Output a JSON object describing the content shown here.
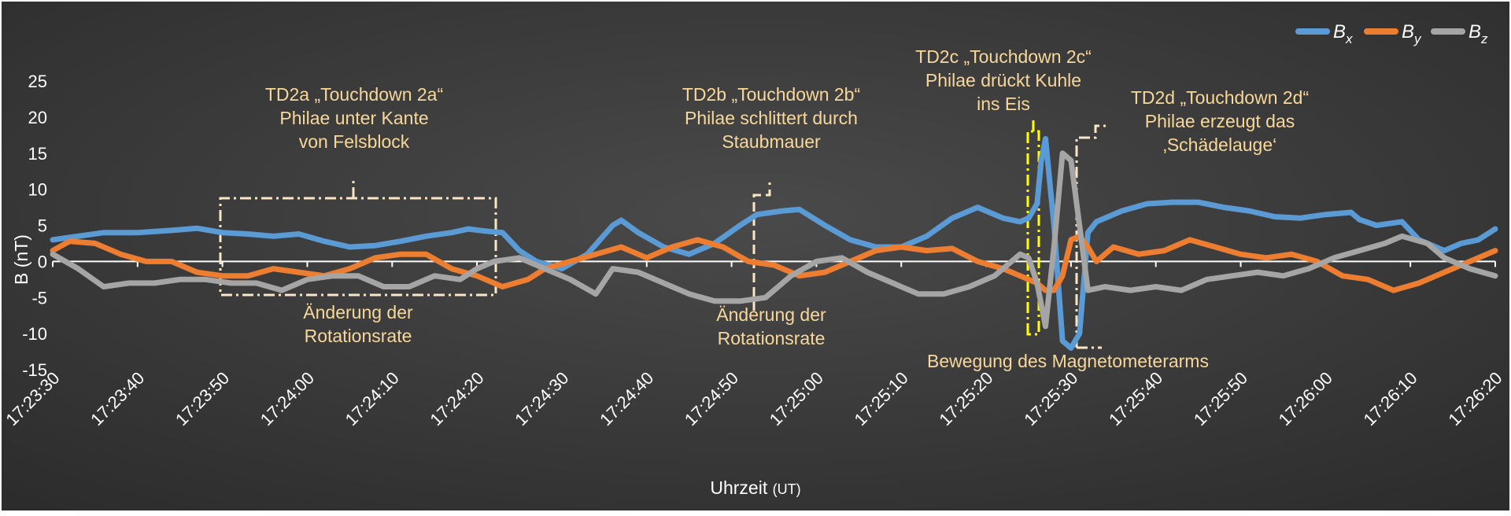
{
  "chart_data": {
    "type": "line",
    "title": "",
    "xlabel": "Uhrzeit",
    "xlabel_unit": "(UT)",
    "ylabel": "B (nT)",
    "ylim": [
      -15,
      25
    ],
    "xlim_seconds": [
      "17:23:30",
      "17:26:20"
    ],
    "y_ticks": [
      "25",
      "20",
      "15",
      "10",
      "5",
      "0",
      "-5",
      "-10",
      "-15"
    ],
    "x_ticks": [
      "17:23:30",
      "17:23:40",
      "17:23:50",
      "17:24:00",
      "17:24:10",
      "17:24:20",
      "17:24:30",
      "17:24:40",
      "17:24:50",
      "17:25:00",
      "17:25:10",
      "17:25:20",
      "17:25:30",
      "17:25:40",
      "17:25:50",
      "17:26:00",
      "17:26:10",
      "17:26:20"
    ],
    "grid": false,
    "legend_position": "top-right",
    "background": "#404040",
    "series": [
      {
        "name": "Bx",
        "base": "B",
        "sub": "x",
        "color": "#5b9bd5",
        "points": [
          [
            "17:23:30",
            3
          ],
          [
            "17:23:33",
            3.5
          ],
          [
            "17:23:36",
            4
          ],
          [
            "17:23:40",
            4
          ],
          [
            "17:23:44",
            4.3
          ],
          [
            "17:23:47",
            4.6
          ],
          [
            "17:23:50",
            4
          ],
          [
            "17:23:53",
            3.8
          ],
          [
            "17:23:56",
            3.5
          ],
          [
            "17:23:59",
            3.8
          ],
          [
            "17:24:02",
            2.8
          ],
          [
            "17:24:05",
            2
          ],
          [
            "17:24:08",
            2.2
          ],
          [
            "17:24:11",
            2.8
          ],
          [
            "17:24:14",
            3.5
          ],
          [
            "17:24:17",
            4
          ],
          [
            "17:24:19",
            4.5
          ],
          [
            "17:24:21",
            4.2
          ],
          [
            "17:24:23",
            4
          ],
          [
            "17:24:25",
            1.5
          ],
          [
            "17:24:27",
            0
          ],
          [
            "17:24:30",
            -1
          ],
          [
            "17:24:33",
            1
          ],
          [
            "17:24:36",
            5
          ],
          [
            "17:24:37",
            5.7
          ],
          [
            "17:24:39",
            4
          ],
          [
            "17:24:42",
            2
          ],
          [
            "17:24:45",
            1
          ],
          [
            "17:24:48",
            2.5
          ],
          [
            "17:24:51",
            5
          ],
          [
            "17:24:53",
            6.5
          ],
          [
            "17:24:56",
            7
          ],
          [
            "17:24:58",
            7.2
          ],
          [
            "17:25:01",
            5
          ],
          [
            "17:25:04",
            3
          ],
          [
            "17:25:07",
            2
          ],
          [
            "17:25:10",
            2
          ],
          [
            "17:25:13",
            3.5
          ],
          [
            "17:25:16",
            6
          ],
          [
            "17:25:19",
            7.5
          ],
          [
            "17:25:22",
            6
          ],
          [
            "17:25:24",
            5.5
          ],
          [
            "17:25:25",
            6
          ],
          [
            "17:25:26",
            8
          ],
          [
            "17:25:26.5",
            14
          ],
          [
            "17:25:27",
            17
          ],
          [
            "17:25:28",
            5
          ],
          [
            "17:25:29",
            -11
          ],
          [
            "17:25:30",
            -12
          ],
          [
            "17:25:31",
            -10
          ],
          [
            "17:25:32",
            4
          ],
          [
            "17:25:33",
            5.5
          ],
          [
            "17:25:36",
            7
          ],
          [
            "17:25:39",
            8
          ],
          [
            "17:25:42",
            8.2
          ],
          [
            "17:25:45",
            8.2
          ],
          [
            "17:25:48",
            7.5
          ],
          [
            "17:25:51",
            7
          ],
          [
            "17:25:54",
            6.2
          ],
          [
            "17:25:57",
            6
          ],
          [
            "17:26:00",
            6.5
          ],
          [
            "17:26:03",
            6.8
          ],
          [
            "17:26:04",
            5.8
          ],
          [
            "17:26:06",
            5
          ],
          [
            "17:26:09",
            5.5
          ],
          [
            "17:26:11",
            3
          ],
          [
            "17:26:14",
            1.5
          ],
          [
            "17:26:16",
            2.5
          ],
          [
            "17:26:18",
            3
          ],
          [
            "17:26:20",
            4.5
          ]
        ]
      },
      {
        "name": "By",
        "base": "B",
        "sub": "y",
        "color": "#ed7d31",
        "points": [
          [
            "17:23:30",
            1.5
          ],
          [
            "17:23:32",
            2.8
          ],
          [
            "17:23:35",
            2.5
          ],
          [
            "17:23:38",
            1
          ],
          [
            "17:23:41",
            0
          ],
          [
            "17:23:44",
            0
          ],
          [
            "17:23:47",
            -1.5
          ],
          [
            "17:23:50",
            -2
          ],
          [
            "17:23:53",
            -2
          ],
          [
            "17:23:56",
            -1
          ],
          [
            "17:23:59",
            -1.5
          ],
          [
            "17:24:02",
            -2
          ],
          [
            "17:24:05",
            -1
          ],
          [
            "17:24:08",
            0.5
          ],
          [
            "17:24:11",
            1
          ],
          [
            "17:24:14",
            1
          ],
          [
            "17:24:17",
            -1
          ],
          [
            "17:24:20",
            -2
          ],
          [
            "17:24:23",
            -3.5
          ],
          [
            "17:24:26",
            -2.5
          ],
          [
            "17:24:28",
            -1
          ],
          [
            "17:24:31",
            0
          ],
          [
            "17:24:34",
            1
          ],
          [
            "17:24:37",
            2
          ],
          [
            "17:24:40",
            0.5
          ],
          [
            "17:24:43",
            2
          ],
          [
            "17:24:46",
            3
          ],
          [
            "17:24:49",
            2
          ],
          [
            "17:24:52",
            0
          ],
          [
            "17:24:55",
            -0.5
          ],
          [
            "17:24:58",
            -2
          ],
          [
            "17:25:01",
            -1.5
          ],
          [
            "17:25:04",
            0
          ],
          [
            "17:25:07",
            1.5
          ],
          [
            "17:25:10",
            2
          ],
          [
            "17:25:13",
            1.5
          ],
          [
            "17:25:16",
            1.8
          ],
          [
            "17:25:19",
            0
          ],
          [
            "17:25:22",
            -1
          ],
          [
            "17:25:24",
            -2
          ],
          [
            "17:25:26",
            -3
          ],
          [
            "17:25:27",
            -4
          ],
          [
            "17:25:28",
            -4
          ],
          [
            "17:25:29",
            -2
          ],
          [
            "17:25:30",
            3
          ],
          [
            "17:25:31",
            3.5
          ],
          [
            "17:25:32",
            2
          ],
          [
            "17:25:33",
            0
          ],
          [
            "17:25:35",
            2
          ],
          [
            "17:25:38",
            1
          ],
          [
            "17:25:41",
            1.5
          ],
          [
            "17:25:44",
            3
          ],
          [
            "17:25:47",
            2
          ],
          [
            "17:25:50",
            1
          ],
          [
            "17:25:53",
            0.5
          ],
          [
            "17:25:56",
            1
          ],
          [
            "17:25:59",
            0
          ],
          [
            "17:26:02",
            -2
          ],
          [
            "17:26:05",
            -2.5
          ],
          [
            "17:26:08",
            -4
          ],
          [
            "17:26:11",
            -3
          ],
          [
            "17:26:14",
            -1.5
          ],
          [
            "17:26:17",
            0
          ],
          [
            "17:26:20",
            1.5
          ]
        ]
      },
      {
        "name": "Bz",
        "base": "B",
        "sub": "z",
        "color": "#a5a5a5",
        "points": [
          [
            "17:23:30",
            1
          ],
          [
            "17:23:33",
            -1
          ],
          [
            "17:23:36",
            -3.5
          ],
          [
            "17:23:39",
            -3
          ],
          [
            "17:23:42",
            -3
          ],
          [
            "17:23:45",
            -2.5
          ],
          [
            "17:23:48",
            -2.5
          ],
          [
            "17:23:51",
            -3
          ],
          [
            "17:23:54",
            -3
          ],
          [
            "17:23:57",
            -4
          ],
          [
            "17:24:00",
            -2.5
          ],
          [
            "17:24:03",
            -2
          ],
          [
            "17:24:06",
            -2
          ],
          [
            "17:24:09",
            -3.5
          ],
          [
            "17:24:12",
            -3.5
          ],
          [
            "17:24:15",
            -2
          ],
          [
            "17:24:18",
            -2.5
          ],
          [
            "17:24:20",
            -1
          ],
          [
            "17:24:22",
            0
          ],
          [
            "17:24:25",
            0.5
          ],
          [
            "17:24:28",
            -1
          ],
          [
            "17:24:31",
            -2.5
          ],
          [
            "17:24:34",
            -4.5
          ],
          [
            "17:24:36",
            -1
          ],
          [
            "17:24:39",
            -1.5
          ],
          [
            "17:24:42",
            -3
          ],
          [
            "17:24:45",
            -4.5
          ],
          [
            "17:24:48",
            -5.5
          ],
          [
            "17:24:51",
            -5.5
          ],
          [
            "17:24:54",
            -5
          ],
          [
            "17:24:57",
            -2
          ],
          [
            "17:25:00",
            0
          ],
          [
            "17:25:03",
            0.5
          ],
          [
            "17:25:06",
            -1.5
          ],
          [
            "17:25:09",
            -3
          ],
          [
            "17:25:12",
            -4.5
          ],
          [
            "17:25:15",
            -4.5
          ],
          [
            "17:25:18",
            -3.5
          ],
          [
            "17:25:21",
            -2
          ],
          [
            "17:25:24",
            1
          ],
          [
            "17:25:25",
            0.5
          ],
          [
            "17:25:26",
            -3
          ],
          [
            "17:25:27",
            -9
          ],
          [
            "17:25:28",
            2
          ],
          [
            "17:25:29",
            15
          ],
          [
            "17:25:30",
            14
          ],
          [
            "17:25:31",
            5
          ],
          [
            "17:25:32",
            -4
          ],
          [
            "17:25:34",
            -3.5
          ],
          [
            "17:25:37",
            -4
          ],
          [
            "17:25:40",
            -3.5
          ],
          [
            "17:25:43",
            -4
          ],
          [
            "17:25:46",
            -2.5
          ],
          [
            "17:25:49",
            -2
          ],
          [
            "17:25:52",
            -1.5
          ],
          [
            "17:25:55",
            -2
          ],
          [
            "17:25:58",
            -1
          ],
          [
            "17:26:01",
            0.5
          ],
          [
            "17:26:04",
            1.5
          ],
          [
            "17:26:07",
            2.5
          ],
          [
            "17:26:09",
            3.5
          ],
          [
            "17:26:12",
            2.5
          ],
          [
            "17:26:14",
            0.5
          ],
          [
            "17:26:17",
            -1
          ],
          [
            "17:26:20",
            -2
          ]
        ]
      }
    ],
    "annotations": [
      {
        "name": "td2a",
        "lines": [
          "TD2a „Touchdown 2a“",
          "Philae unter Kante",
          "von Felsblock"
        ]
      },
      {
        "name": "td2a-rotation",
        "lines": [
          "Änderung der",
          "Rotationsrate"
        ]
      },
      {
        "name": "td2b",
        "lines": [
          "TD2b „Touchdown 2b“",
          "Philae schlittert durch",
          "Staubmauer"
        ]
      },
      {
        "name": "td2b-rotation",
        "lines": [
          "Änderung der",
          "Rotationsrate"
        ]
      },
      {
        "name": "td2c",
        "lines": [
          "TD2c „Touchdown 2c“",
          "Philae drückt Kuhle",
          "ins Eis"
        ]
      },
      {
        "name": "td2d",
        "lines": [
          "TD2d „Touchdown 2d“",
          "Philae erzeugt das",
          "‚Schädelauge‘"
        ]
      },
      {
        "name": "magnetometer",
        "lines": [
          "Bewegung des Magnetometerarms"
        ]
      }
    ]
  }
}
